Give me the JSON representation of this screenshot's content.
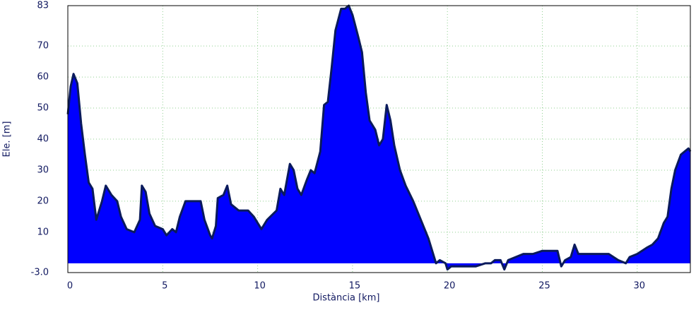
{
  "chart_data": {
    "type": "area",
    "xlabel": "Distància [km]",
    "ylabel": "Ele. [m]",
    "x": [
      0,
      0.15,
      0.3,
      0.5,
      0.7,
      0.9,
      1.1,
      1.3,
      1.5,
      1.8,
      2.0,
      2.3,
      2.6,
      2.8,
      3.1,
      3.5,
      3.8,
      3.9,
      4.1,
      4.3,
      4.6,
      5.0,
      5.2,
      5.5,
      5.7,
      5.9,
      6.2,
      6.5,
      7.0,
      7.2,
      7.5,
      7.6,
      7.8,
      7.9,
      8.2,
      8.4,
      8.6,
      9.0,
      9.5,
      9.8,
      10.2,
      10.5,
      11.0,
      11.2,
      11.4,
      11.7,
      11.9,
      12.1,
      12.3,
      12.6,
      12.8,
      13.0,
      13.3,
      13.5,
      13.7,
      13.9,
      14.1,
      14.4,
      14.6,
      14.8,
      15.0,
      15.3,
      15.5,
      15.7,
      15.9,
      16.2,
      16.4,
      16.6,
      16.8,
      17.0,
      17.2,
      17.5,
      17.8,
      18.2,
      18.6,
      19.0,
      19.3,
      19.4,
      19.6,
      19.9,
      20.0,
      20.2,
      20.5,
      21.0,
      21.5,
      22.0,
      22.3,
      22.5,
      22.8,
      23.0,
      23.2,
      23.6,
      24.0,
      24.5,
      25.0,
      25.5,
      25.8,
      26.0,
      26.2,
      26.5,
      26.7,
      26.9,
      27.5,
      28.0,
      28.5,
      29.0,
      29.4,
      29.6,
      30.0,
      30.5,
      30.8,
      31.1,
      31.4,
      31.6,
      31.8,
      32.0,
      32.3,
      32.5,
      32.7,
      32.8
    ],
    "values": [
      48,
      57,
      61,
      58,
      45,
      35,
      26,
      24,
      14,
      20,
      25,
      22,
      20,
      15,
      11,
      10,
      14,
      25,
      23,
      16,
      12,
      11,
      9,
      11,
      10,
      15,
      20,
      20,
      20,
      14,
      9,
      8,
      12,
      21,
      22,
      25,
      19,
      17,
      17,
      15,
      11,
      14,
      17,
      24,
      22,
      32,
      30,
      24,
      22,
      27,
      30,
      29,
      36,
      51,
      52,
      63,
      75,
      82,
      82,
      83,
      80,
      73,
      68,
      55,
      46,
      43,
      38,
      40,
      51,
      46,
      38,
      30,
      25,
      20,
      14,
      8,
      2,
      0,
      1,
      0,
      -2,
      -1,
      -1,
      -1,
      -1,
      0,
      0,
      1,
      1,
      -2,
      1,
      2,
      3,
      3,
      4,
      4,
      4,
      -1,
      1,
      2,
      6,
      3,
      3,
      3,
      3,
      1,
      0,
      2,
      3,
      5,
      6,
      8,
      13,
      15,
      24,
      30,
      35,
      36,
      37,
      36
    ],
    "color": "#0000ff",
    "line_color": "#0a1a5c",
    "xlim": [
      0,
      32.8
    ],
    "ylim": [
      -3,
      83
    ],
    "xticks": [
      0,
      5,
      10,
      15,
      20,
      25,
      30
    ],
    "yticks": [
      {
        "value": -3,
        "label": "-3.0"
      },
      10,
      20,
      30,
      40,
      50,
      60,
      70,
      83
    ],
    "grid": true
  }
}
